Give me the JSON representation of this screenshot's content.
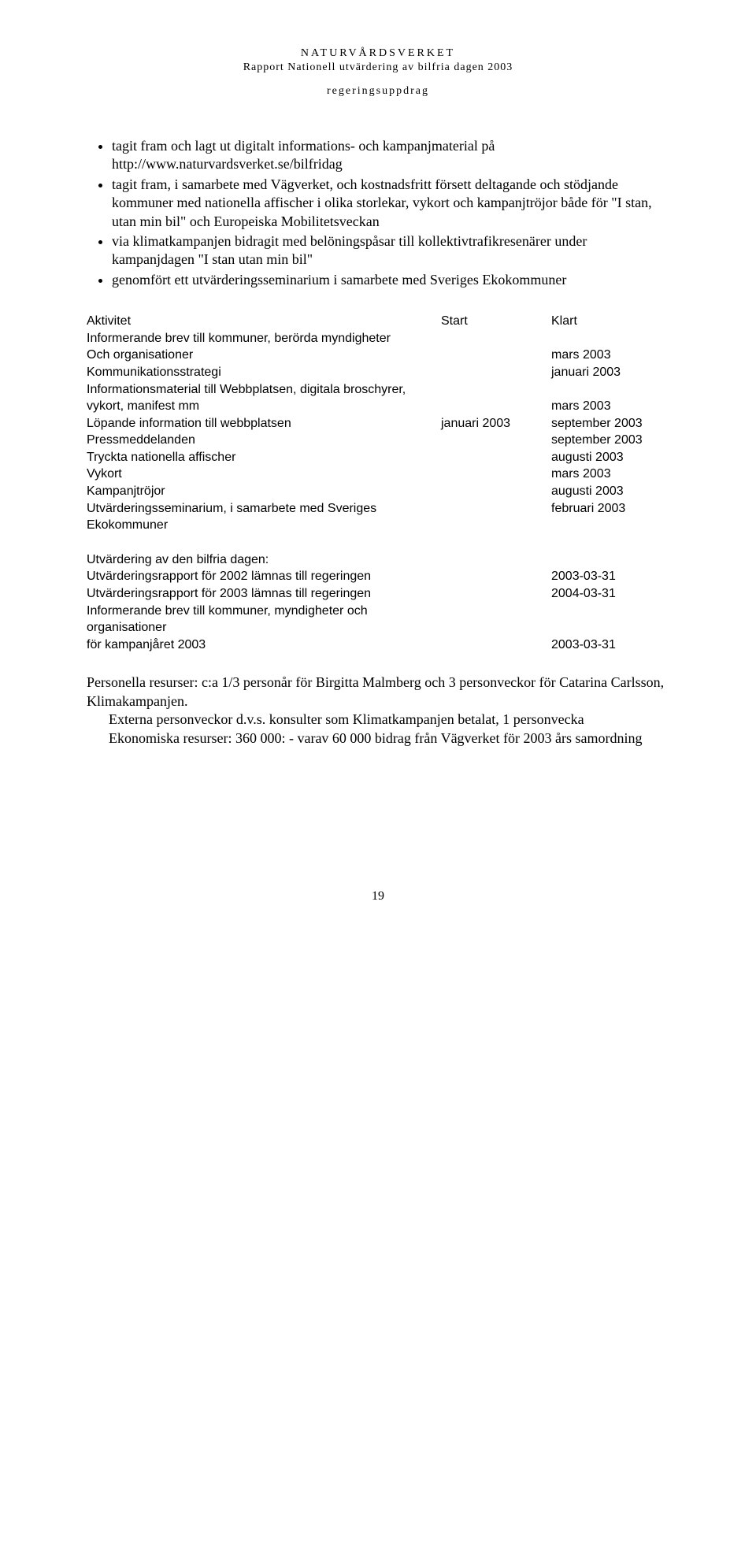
{
  "header": {
    "line1": "NATURVÅRDSVERKET",
    "line2": "Rapport Nationell utvärdering av bilfria dagen 2003",
    "line3": "regeringsuppdrag"
  },
  "bullets": [
    "tagit fram och lagt ut digitalt informations- och kampanjmaterial på http://www.naturvardsverket.se/bilfridag",
    "tagit fram, i samarbete med Vägverket, och kostnadsfritt försett deltagande och stödjande kommuner med nationella affischer i olika storlekar, vykort och kampanjtröjor både för \"I stan, utan min bil\" och Europeiska Mobilitetsveckan",
    "via klimatkampanjen bidragit med belöningspåsar till kollektivtrafikresenärer under kampanjdagen \"I stan utan min bil\"",
    "genomfört ett utvärderingsseminarium i samarbete med Sveriges Ekokommuner"
  ],
  "table_header": {
    "activity": "Aktivitet",
    "start": "Start",
    "klart": "Klart"
  },
  "rows1": [
    {
      "a": "Informerande brev till kommuner, berörda myndigheter",
      "s": "",
      "k": ""
    },
    {
      "a": "Och organisationer",
      "s": "",
      "k": "mars 2003"
    },
    {
      "a": "Kommunikationsstrategi",
      "s": "",
      "k": "januari 2003"
    },
    {
      "a": "Informationsmaterial till Webbplatsen, digitala broschyrer,",
      "s": "",
      "k": ""
    },
    {
      "a": "vykort, manifest mm",
      "s": "",
      "k": "mars 2003"
    },
    {
      "a": "Löpande information till webbplatsen",
      "s": "januari 2003",
      "k": "september 2003"
    },
    {
      "a": "Pressmeddelanden",
      "s": "",
      "k": "september 2003"
    },
    {
      "a": "Tryckta nationella affischer",
      "s": "",
      "k": "augusti 2003"
    },
    {
      "a": "Vykort",
      "s": "",
      "k": "mars 2003"
    },
    {
      "a": "Kampanjtröjor",
      "s": "",
      "k": "augusti 2003"
    },
    {
      "a": "Utvärderingsseminarium, i samarbete med Sveriges Ekokommuner",
      "s": "",
      "k": "februari 2003"
    }
  ],
  "rows2": [
    {
      "a": "Utvärdering av den bilfria dagen:",
      "s": "",
      "k": ""
    },
    {
      "a": "Utvärderingsrapport för 2002 lämnas till regeringen",
      "s": "",
      "k": "2003-03-31"
    },
    {
      "a": "Utvärderingsrapport för 2003 lämnas till regeringen",
      "s": "",
      "k": "2004-03-31"
    },
    {
      "a": "Informerande brev till kommuner, myndigheter och organisationer",
      "s": "",
      "k": ""
    },
    {
      "a": "för kampanjåret 2003",
      "s": "",
      "k": "2003-03-31"
    }
  ],
  "para": {
    "l1": "Personella resurser: c:a 1/3 personår för Birgitta Malmberg och 3 personveckor för Catarina Carlsson, Klimakampanjen.",
    "l2": "Externa personveckor d.v.s. konsulter som Klimatkampanjen betalat,  1 personvecka",
    "l3": "Ekonomiska resurser: 360 000: - varav 60 000 bidrag från Vägverket för 2003 års samordning"
  },
  "page_number": "19"
}
